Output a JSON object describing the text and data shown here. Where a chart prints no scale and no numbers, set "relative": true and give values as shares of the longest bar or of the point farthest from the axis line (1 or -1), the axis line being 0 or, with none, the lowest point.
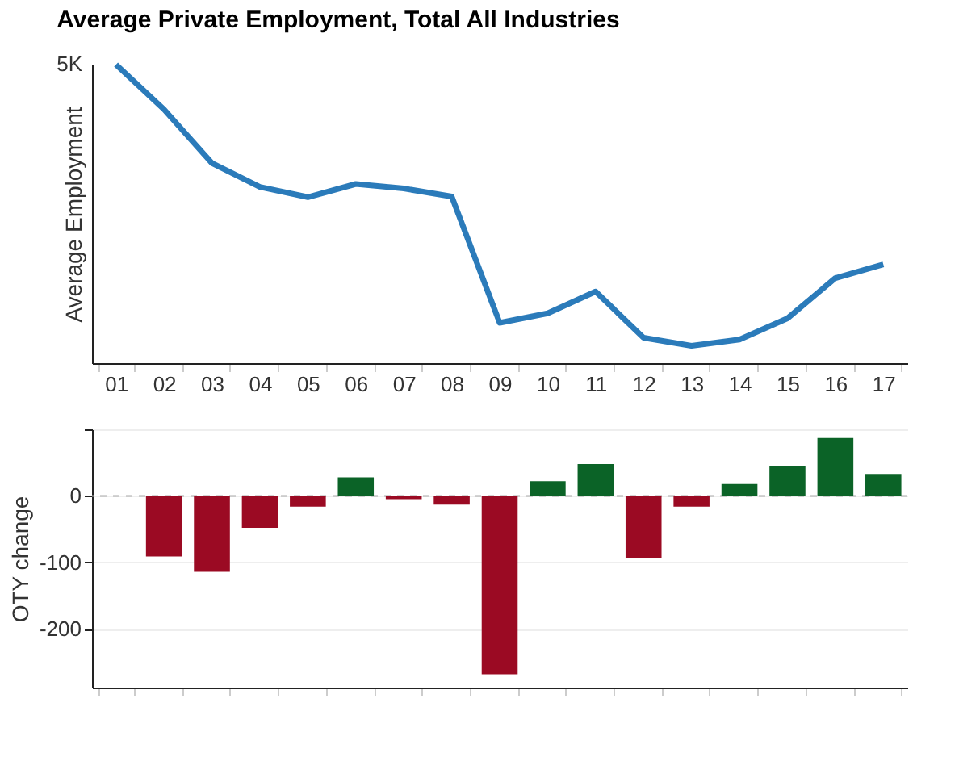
{
  "chart_data": [
    {
      "type": "line",
      "title": "Average Private Employment, Total All Industries",
      "ylabel": "Average Employment",
      "relative": true,
      "annotations": [
        "5K"
      ],
      "categories": [
        "01",
        "02",
        "03",
        "04",
        "05",
        "06",
        "07",
        "08",
        "09",
        "10",
        "11",
        "12",
        "13",
        "14",
        "15",
        "16",
        "17"
      ],
      "series": [
        {
          "color": "#2b7bba",
          "values": [
            1.0,
            0.85,
            0.67,
            0.59,
            0.556,
            0.6,
            0.585,
            0.558,
            0.135,
            0.167,
            0.24,
            0.085,
            0.058,
            0.079,
            0.15,
            0.285,
            0.331
          ]
        }
      ],
      "grid": false,
      "marker": "none",
      "line_style": "solid"
    },
    {
      "type": "bar",
      "ylabel": "OTY change",
      "categories": [
        "01",
        "02",
        "03",
        "04",
        "05",
        "06",
        "07",
        "08",
        "09",
        "10",
        "11",
        "12",
        "13",
        "14",
        "15",
        "16",
        "17"
      ],
      "tick_labels": "y",
      "values": [
        null,
        -91,
        -114,
        -48,
        -16,
        28,
        -5,
        -13,
        -268,
        22,
        48,
        -93,
        -16,
        18,
        45,
        87,
        33
      ],
      "colors": [
        null,
        "#9b0a23",
        "#9b0a23",
        "#9b0a23",
        "#9b0a23",
        "#0b6327",
        "#9b0a23",
        "#9b0a23",
        "#9b0a23",
        "#0b6327",
        "#0b6327",
        "#9b0a23",
        "#9b0a23",
        "#0b6327",
        "#0b6327",
        "#0b6327",
        "#0b6327"
      ],
      "ylim": [
        -288,
        100
      ],
      "yticks": [
        {
          "value": 100,
          "label": null
        },
        0,
        -100,
        -200
      ],
      "grid": "y",
      "ref_lines": [
        {
          "axis": "y",
          "value": 0,
          "color": "#aaaaaa",
          "line_style": "dashed"
        }
      ]
    }
  ]
}
